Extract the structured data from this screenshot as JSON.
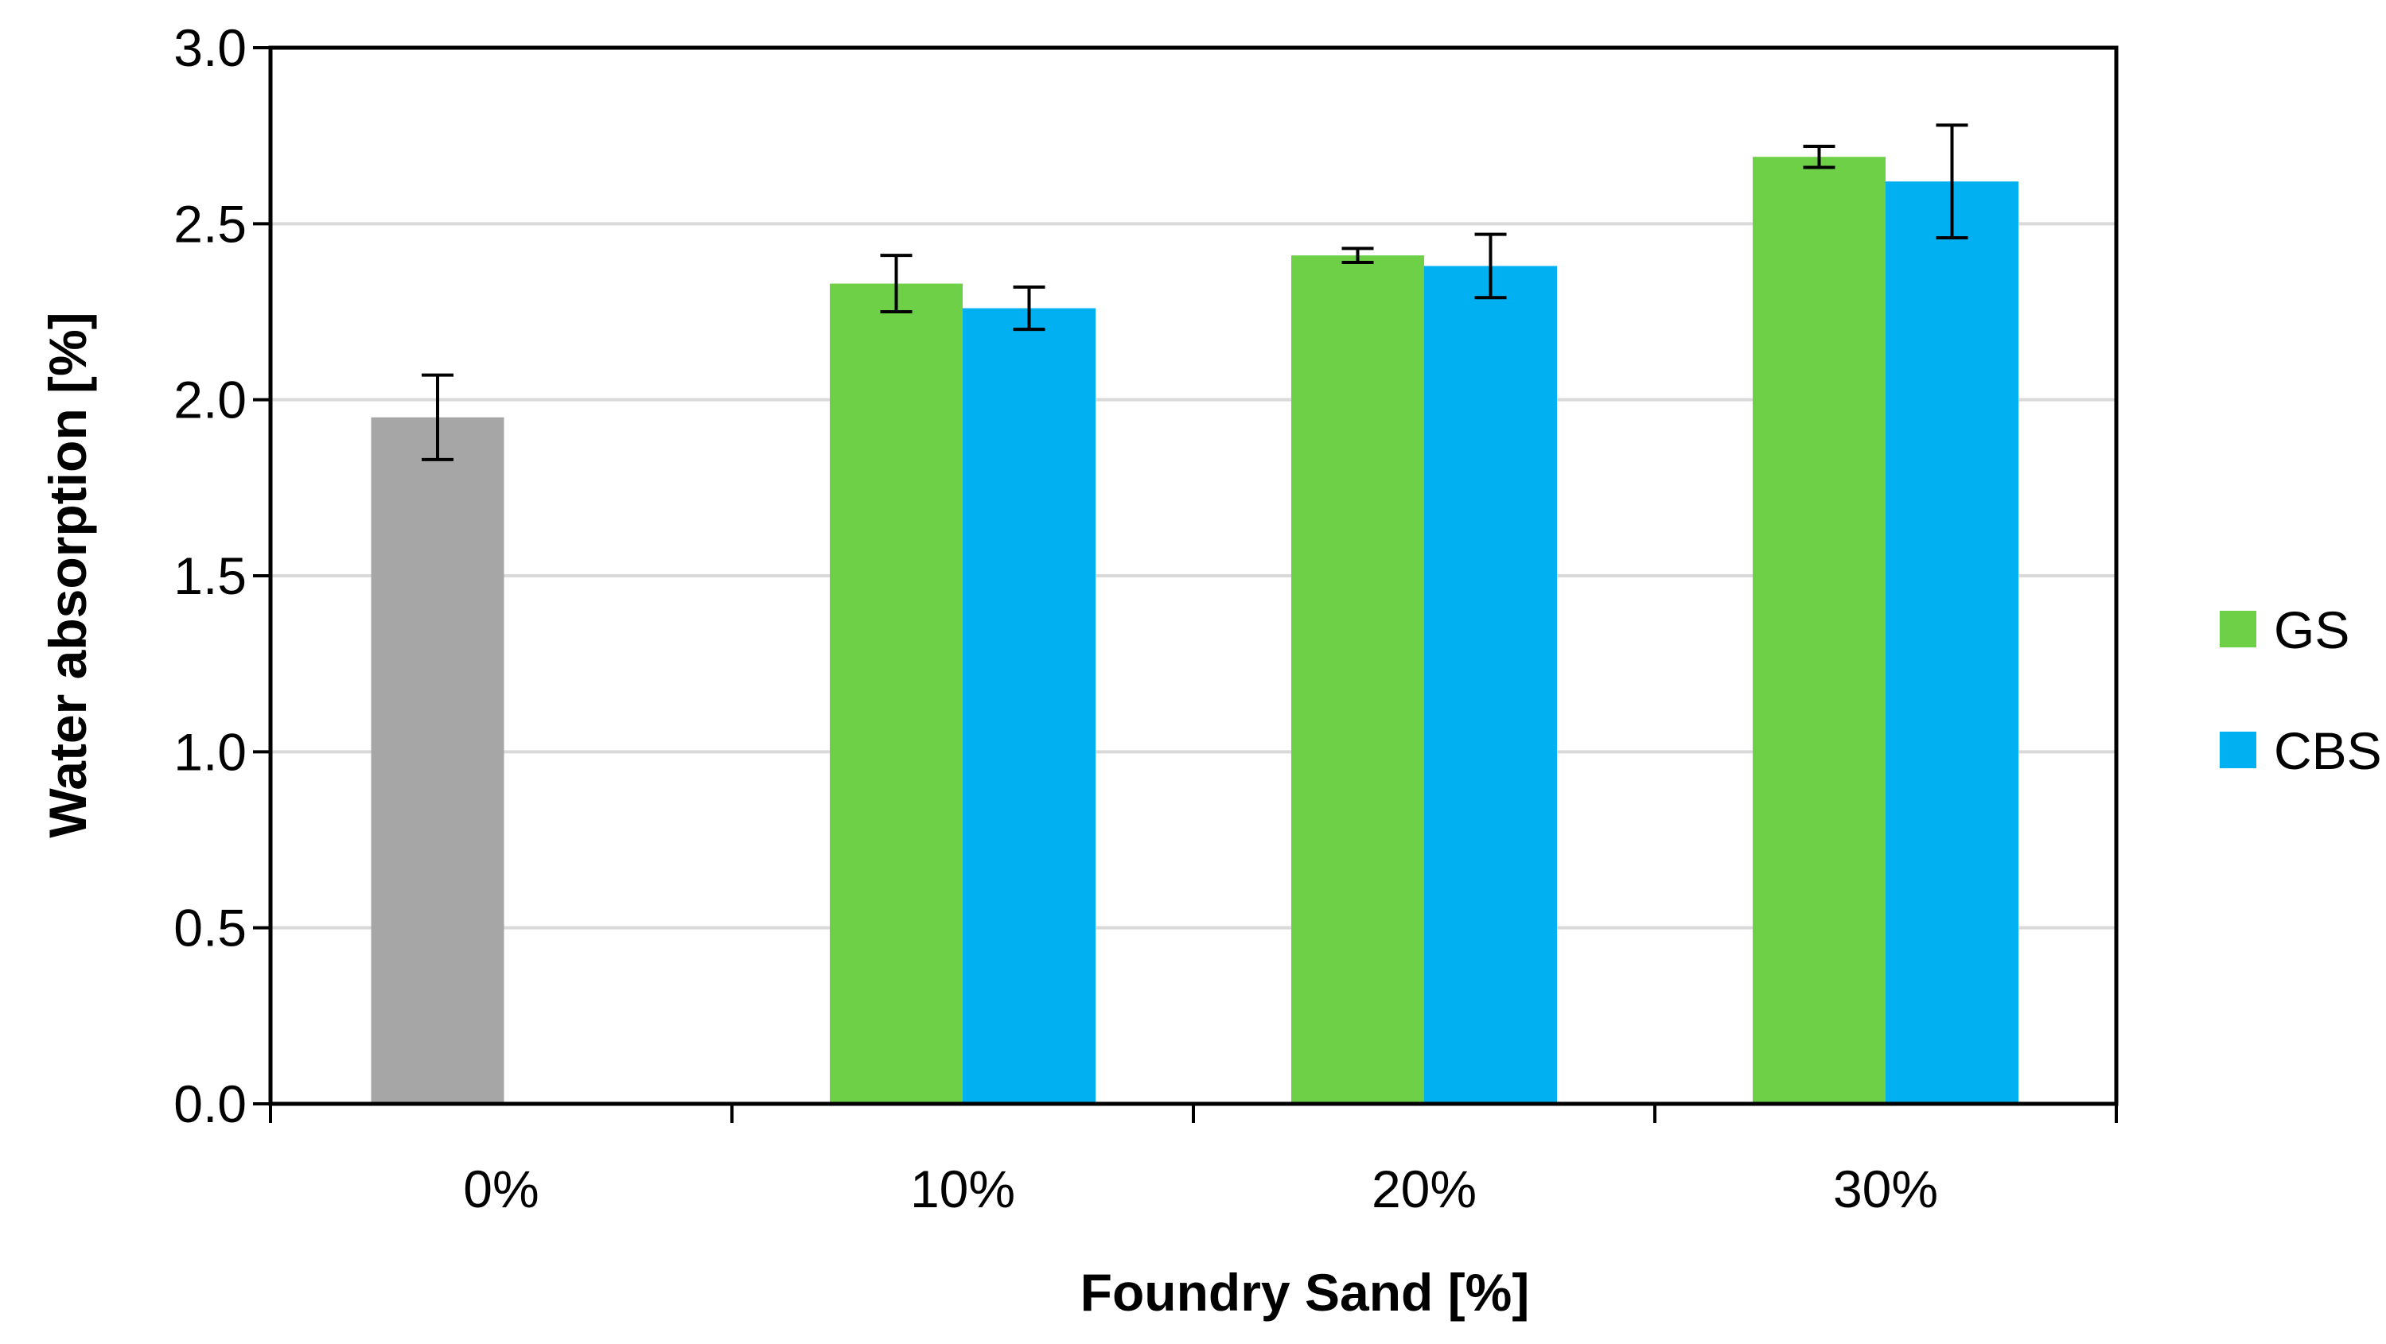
{
  "chart_data": {
    "type": "bar",
    "xlabel": "Foundry Sand [%]",
    "ylabel": "Water absorption [%]",
    "ylim": [
      0,
      3.0
    ],
    "yticks": [
      "0.0",
      "0.5",
      "1.0",
      "1.5",
      "2.0",
      "2.5",
      "3.0"
    ],
    "categories": [
      "0%",
      "10%",
      "20%",
      "30%"
    ],
    "grid": "horizontal",
    "legend_position": "right",
    "reference": {
      "category": "0%",
      "value": 1.95,
      "error": 0.12,
      "color": "#a6a6a6"
    },
    "series": [
      {
        "name": "GS",
        "color": "#6dd046",
        "values": [
          null,
          2.33,
          2.41,
          2.69
        ],
        "errors": [
          null,
          0.08,
          0.02,
          0.03
        ]
      },
      {
        "name": "CBS",
        "color": "#00b0f0",
        "values": [
          null,
          2.26,
          2.38,
          2.62
        ],
        "errors": [
          null,
          0.06,
          0.09,
          0.16
        ]
      }
    ]
  }
}
